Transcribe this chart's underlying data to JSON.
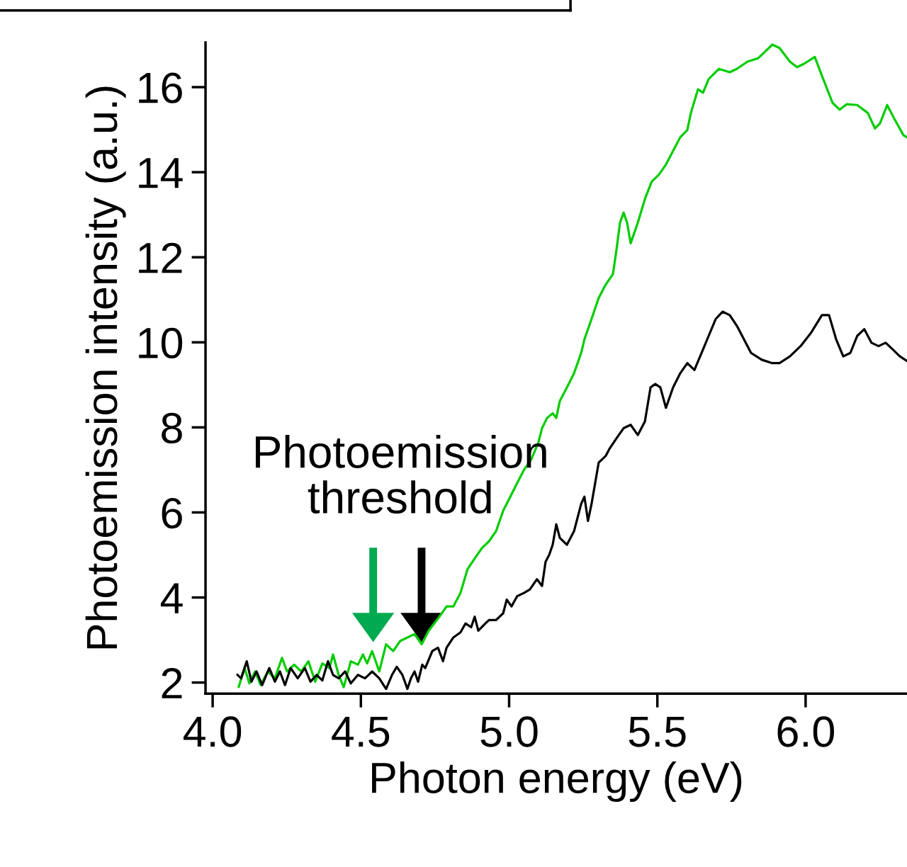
{
  "chart_data": {
    "type": "line",
    "xlabel": "Photon energy (eV)",
    "ylabel": "Photoemission intensity (a.u.)",
    "annotations": [
      "Photoemission\nthreshold"
    ],
    "xlim": [
      3.976,
      6.342
    ],
    "ylim": [
      1.74,
      17.05
    ],
    "xticks": [
      {
        "value": 4.0,
        "label": "4.0"
      },
      {
        "value": 4.5,
        "label": "4.5"
      },
      {
        "value": 5.0,
        "label": "5.0"
      },
      {
        "value": 5.5,
        "label": "5.5"
      },
      {
        "value": 6.0,
        "label": "6.0"
      }
    ],
    "yticks": [
      2,
      4,
      6,
      8,
      10,
      12,
      14,
      16
    ],
    "grid": false,
    "marker": "none",
    "line_style": "solid",
    "series": [
      {
        "color": "#00cc00",
        "x": [
          4.088,
          4.108,
          4.124,
          4.143,
          4.162,
          4.186,
          4.21,
          4.234,
          4.251,
          4.275,
          4.299,
          4.323,
          4.346,
          4.37,
          4.394,
          4.406,
          4.425,
          4.442,
          4.466,
          4.49,
          4.507,
          4.521,
          4.538,
          4.562,
          4.585,
          4.609,
          4.633,
          4.657,
          4.681,
          4.705,
          4.729,
          4.765,
          4.789,
          4.812,
          4.836,
          4.86,
          4.884,
          4.908,
          4.932,
          4.956,
          4.98,
          5.004,
          5.027,
          5.051,
          5.075,
          5.099,
          5.111,
          5.128,
          5.147,
          5.159,
          5.171,
          5.195,
          5.219,
          5.243,
          5.254,
          5.278,
          5.302,
          5.326,
          5.35,
          5.362,
          5.374,
          5.386,
          5.398,
          5.41,
          5.434,
          5.458,
          5.481,
          5.505,
          5.529,
          5.553,
          5.577,
          5.601,
          5.613,
          5.637,
          5.654,
          5.673,
          5.708,
          5.744,
          5.768,
          5.804,
          5.84,
          5.864,
          5.888,
          5.912,
          5.947,
          5.971,
          5.995,
          6.031,
          6.055,
          6.091,
          6.115,
          6.139,
          6.174,
          6.21,
          6.234,
          6.251,
          6.275,
          6.299,
          6.33,
          6.342
        ],
        "values": [
          1.9,
          2.34,
          1.98,
          2.26,
          1.94,
          2.26,
          2.1,
          2.58,
          2.26,
          2.42,
          2.26,
          2.5,
          2.02,
          2.45,
          2.34,
          2.66,
          2.18,
          1.89,
          2.5,
          2.42,
          2.66,
          2.45,
          2.74,
          2.26,
          2.9,
          2.74,
          2.98,
          3.06,
          3.14,
          2.9,
          3.22,
          3.55,
          3.79,
          3.79,
          4.11,
          4.67,
          4.92,
          5.16,
          5.32,
          5.56,
          6.04,
          6.37,
          6.69,
          7.01,
          7.25,
          7.65,
          7.98,
          8.22,
          8.33,
          8.22,
          8.62,
          8.94,
          9.27,
          9.75,
          10.07,
          10.55,
          11.04,
          11.36,
          11.6,
          12.17,
          12.81,
          13.05,
          12.81,
          12.33,
          12.81,
          13.37,
          13.78,
          13.94,
          14.18,
          14.5,
          14.82,
          14.99,
          15.39,
          15.95,
          15.87,
          16.19,
          16.43,
          16.35,
          16.43,
          16.6,
          16.68,
          16.84,
          17.0,
          16.92,
          16.6,
          16.47,
          16.55,
          16.71,
          16.27,
          15.63,
          15.47,
          15.6,
          15.58,
          15.39,
          15.03,
          15.15,
          15.58,
          15.26,
          14.87,
          14.82
        ]
      },
      {
        "color": "#000000",
        "x": [
          4.084,
          4.096,
          4.115,
          4.131,
          4.148,
          4.167,
          4.191,
          4.21,
          4.227,
          4.244,
          4.263,
          4.287,
          4.311,
          4.33,
          4.351,
          4.37,
          4.389,
          4.406,
          4.425,
          4.447,
          4.466,
          4.49,
          4.514,
          4.538,
          4.562,
          4.585,
          4.605,
          4.621,
          4.64,
          4.657,
          4.669,
          4.681,
          4.693,
          4.707,
          4.717,
          4.741,
          4.76,
          4.777,
          4.789,
          4.812,
          4.836,
          4.853,
          4.872,
          4.884,
          4.896,
          4.92,
          4.932,
          4.956,
          4.98,
          4.992,
          5.008,
          5.027,
          5.051,
          5.07,
          5.094,
          5.111,
          5.123,
          5.135,
          5.147,
          5.159,
          5.171,
          5.195,
          5.219,
          5.243,
          5.254,
          5.266,
          5.278,
          5.302,
          5.326,
          5.338,
          5.362,
          5.386,
          5.41,
          5.434,
          5.458,
          5.477,
          5.493,
          5.51,
          5.529,
          5.553,
          5.577,
          5.601,
          5.625,
          5.649,
          5.673,
          5.697,
          5.72,
          5.744,
          5.768,
          5.792,
          5.816,
          5.852,
          5.888,
          5.912,
          5.947,
          5.983,
          6.019,
          6.055,
          6.079,
          6.103,
          6.127,
          6.151,
          6.174,
          6.198,
          6.222,
          6.246,
          6.27,
          6.294,
          6.318,
          6.342
        ],
        "values": [
          2.18,
          2.1,
          2.5,
          2.02,
          2.26,
          1.94,
          2.34,
          2.02,
          2.26,
          1.94,
          2.34,
          2.1,
          2.34,
          2.02,
          2.18,
          2.05,
          2.5,
          2.18,
          2.1,
          2.26,
          1.98,
          2.18,
          2.1,
          2.26,
          2.1,
          1.85,
          2.18,
          2.37,
          2.18,
          1.85,
          2.1,
          2.26,
          2.02,
          2.42,
          2.34,
          2.74,
          2.82,
          2.5,
          2.82,
          3.06,
          3.18,
          3.39,
          3.3,
          3.55,
          3.22,
          3.39,
          3.47,
          3.47,
          3.63,
          3.95,
          3.79,
          4.03,
          4.11,
          4.19,
          4.43,
          4.27,
          4.84,
          5.0,
          5.24,
          5.72,
          5.4,
          5.24,
          5.56,
          6.2,
          6.37,
          5.8,
          6.2,
          7.17,
          7.33,
          7.49,
          7.74,
          7.98,
          8.06,
          7.82,
          8.14,
          8.94,
          9.02,
          8.94,
          8.46,
          8.94,
          9.27,
          9.51,
          9.35,
          9.75,
          10.15,
          10.55,
          10.72,
          10.64,
          10.39,
          10.07,
          9.75,
          9.59,
          9.51,
          9.51,
          9.67,
          9.91,
          10.23,
          10.64,
          10.64,
          10.07,
          9.67,
          9.75,
          10.15,
          10.31,
          9.99,
          9.91,
          9.99,
          9.83,
          9.67,
          9.56
        ]
      }
    ]
  }
}
